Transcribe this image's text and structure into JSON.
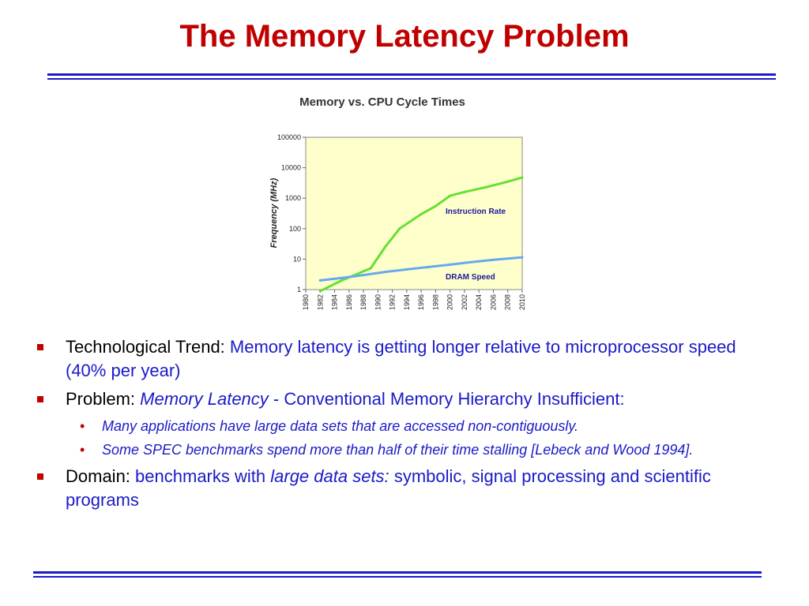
{
  "slide": {
    "title": "The Memory Latency Problem"
  },
  "bullets": {
    "b1": {
      "label": "Technological Trend:",
      "text": "Memory latency is getting longer relative to microprocessor speed (40% per year)"
    },
    "b2": {
      "label": "Problem:",
      "emph": "Memory Latency",
      "text": "- Conventional Memory Hierarchy Insufficient:",
      "subs": [
        "Many applications have large data sets that are accessed non-contiguously.",
        "Some SPEC benchmarks spend more than half of their time stalling [Lebeck and Wood 1994]."
      ]
    },
    "b3": {
      "label": "Domain:",
      "text1": "benchmarks with",
      "emph": "large data sets:",
      "text2": "symbolic, signal processing and scientific programs"
    }
  },
  "colors": {
    "title": "#c00000",
    "rule": "#1a1ac8",
    "instruction": "#66e033",
    "dram": "#66aaee",
    "plot_bg": "#ffffcc"
  },
  "chart_data": {
    "type": "line",
    "title": "Memory vs. CPU Cycle Times",
    "ylabel": "Frequency (MHz)",
    "xlabel": "",
    "yscale": "log",
    "ylim": [
      1,
      100000
    ],
    "xlim": [
      1980,
      2010
    ],
    "yticks": [
      "1",
      "10",
      "100",
      "1000",
      "10000",
      "100000"
    ],
    "xticks": [
      "1980",
      "1982",
      "1984",
      "1986",
      "1988",
      "1990",
      "1992",
      "1994",
      "1996",
      "1998",
      "2000",
      "2002",
      "2004",
      "2006",
      "2008",
      "2010"
    ],
    "grid": false,
    "series": [
      {
        "name": "Instruction Rate",
        "color": "#66e033",
        "points": [
          [
            1982,
            0.9
          ],
          [
            1985,
            2.0
          ],
          [
            1989,
            5
          ],
          [
            1991,
            25
          ],
          [
            1993,
            100
          ],
          [
            1996,
            300
          ],
          [
            1998,
            550
          ],
          [
            2000,
            1200
          ],
          [
            2002,
            1600
          ],
          [
            2005,
            2300
          ],
          [
            2008,
            3500
          ],
          [
            2010,
            4800
          ]
        ]
      },
      {
        "name": "DRAM Speed",
        "color": "#66aaee",
        "points": [
          [
            1982,
            2.0
          ],
          [
            1985,
            2.4
          ],
          [
            1988,
            3.0
          ],
          [
            1991,
            3.8
          ],
          [
            1994,
            4.6
          ],
          [
            1997,
            5.5
          ],
          [
            2000,
            6.6
          ],
          [
            2003,
            8.0
          ],
          [
            2006,
            9.5
          ],
          [
            2010,
            11.5
          ]
        ]
      }
    ]
  }
}
